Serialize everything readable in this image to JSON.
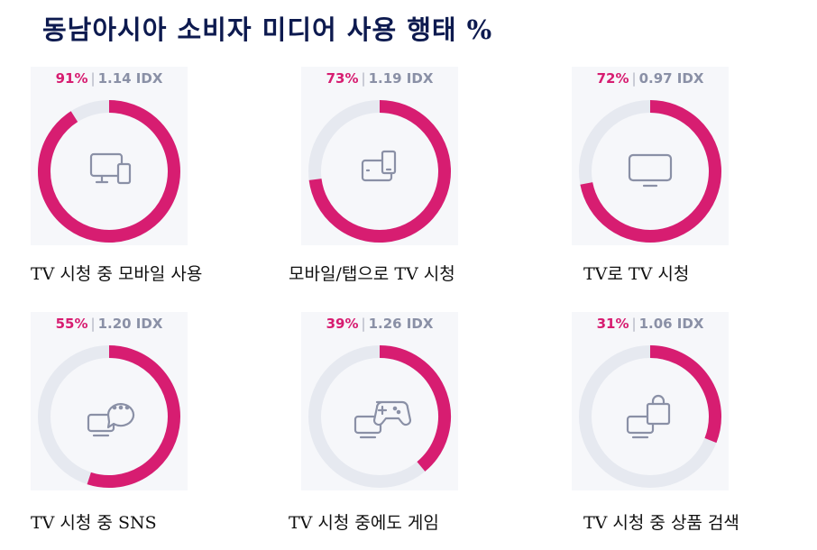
{
  "title": "동남아시아 소비자 미디어 사용 행태 %",
  "colors": {
    "accent": "#d71d71",
    "track": "#e6e9f0",
    "icon": "#8a90a6"
  },
  "chart_data": {
    "type": "pie",
    "title": "동남아시아 소비자 미디어 사용 행태 %",
    "unit": "%",
    "items": [
      {
        "label": "TV 시청 중 모바일 사용",
        "percent": 91,
        "percent_text": "91%",
        "idx_text": "1.14 IDX",
        "icon": "desktop-mobile-icon"
      },
      {
        "label": "모바일/탭으로 TV 시청",
        "percent": 73,
        "percent_text": "73%",
        "idx_text": "1.19 IDX",
        "icon": "tablet-phone-icon"
      },
      {
        "label": "TV로 TV 시청",
        "percent": 72,
        "percent_text": "72%",
        "idx_text": "0.97 IDX",
        "icon": "tv-icon"
      },
      {
        "label": "TV 시청 중 SNS",
        "percent": 55,
        "percent_text": "55%",
        "idx_text": "1.20 IDX",
        "icon": "tv-chat-icon"
      },
      {
        "label": "TV 시청 중에도 게임",
        "percent": 39,
        "percent_text": "39%",
        "idx_text": "1.26 IDX",
        "icon": "tv-gamepad-icon"
      },
      {
        "label": "TV 시청 중 상품 검색",
        "percent": 31,
        "percent_text": "31%",
        "idx_text": "1.06 IDX",
        "icon": "tv-shopping-bag-icon"
      }
    ]
  }
}
